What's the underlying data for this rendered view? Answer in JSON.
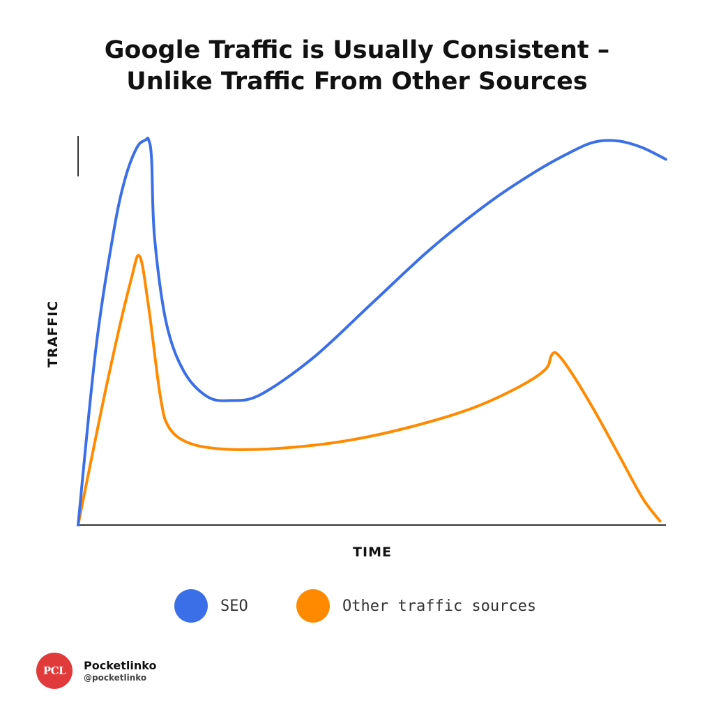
{
  "title": {
    "line1": "Google Traffic is Usually Consistent –",
    "line2": "Unlike Traffic From Other Sources"
  },
  "chart_data": {
    "type": "line",
    "title": "Google Traffic is Usually Consistent – Unlike Traffic From Other Sources",
    "xlabel": "TIME",
    "ylabel": "TRAFFIC",
    "xlim": [
      0,
      100
    ],
    "ylim": [
      0,
      100
    ],
    "grid": false,
    "legend_position": "bottom",
    "series": [
      {
        "name": "SEO",
        "color": "#3b6fe8",
        "x": [
          0,
          3,
          6,
          8,
          10,
          11.5,
          12,
          12.5,
          13,
          15,
          18,
          22,
          26,
          31,
          40,
          50,
          60,
          70,
          78,
          84,
          88,
          92,
          96,
          100
        ],
        "y": [
          0,
          45,
          75,
          89,
          97,
          99,
          99,
          94,
          74,
          52,
          39.5,
          33,
          32,
          33.5,
          43,
          57,
          71,
          83,
          91,
          96,
          98.5,
          98.7,
          97,
          94
        ]
      },
      {
        "name": "Other traffic sources",
        "color": "#ff8a00",
        "x": [
          0,
          5,
          9,
          10.5,
          12,
          14,
          15.5,
          19,
          25,
          34,
          45,
          56,
          67,
          75,
          79.5,
          80.5,
          81.5,
          84,
          88,
          92,
          96,
          99
        ],
        "y": [
          0,
          37,
          63,
          69,
          56,
          33,
          25,
          21,
          19.5,
          19.7,
          21.5,
          25,
          30,
          35.5,
          40,
          43.5,
          44,
          39,
          29,
          18,
          7,
          1
        ]
      }
    ]
  },
  "legend": {
    "seo_label": "SEO",
    "other_label": "Other traffic sources",
    "seo_color": "#3b6fe8",
    "other_color": "#ff8a00"
  },
  "brand": {
    "logo_text": "PCL",
    "name": "Pocketlinko",
    "handle": "@pocketlinko",
    "logo_color": "#e03a3a"
  }
}
